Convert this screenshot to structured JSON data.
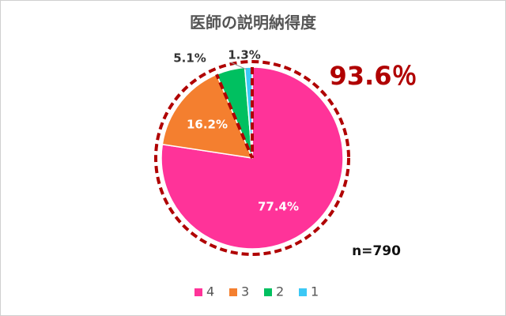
{
  "chart_data": {
    "type": "pie",
    "title": "医師の説明納得度",
    "categories": [
      "4",
      "3",
      "2",
      "1"
    ],
    "values": [
      77.4,
      16.2,
      5.1,
      1.3
    ],
    "value_labels": [
      "77.4%",
      "16.2%",
      "5.1%",
      "1.3%"
    ],
    "colors": [
      "#ff3399",
      "#f47f2f",
      "#00c060",
      "#3cc8f5"
    ],
    "annotations": [
      "93.6％",
      "n=790"
    ],
    "legend": "bottom"
  }
}
